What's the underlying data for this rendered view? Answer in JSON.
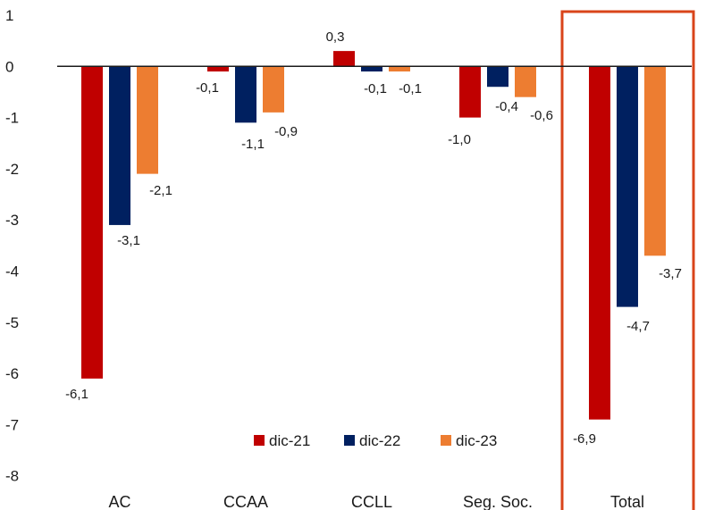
{
  "chart_data": {
    "type": "bar",
    "categories": [
      "AC",
      "CCAA",
      "CCLL",
      "Seg. Soc.",
      "Total"
    ],
    "series": [
      {
        "name": "dic-21",
        "color": "#C00000",
        "values": [
          -6.1,
          -0.1,
          0.3,
          -1.0,
          -6.9
        ],
        "labels": [
          "-6,1",
          "-0,1",
          "0,3",
          "-1,0",
          "-6,9"
        ]
      },
      {
        "name": "dic-22",
        "color": "#002060",
        "values": [
          -3.1,
          -1.1,
          -0.1,
          -0.4,
          -4.7
        ],
        "labels": [
          "-3,1",
          "-1,1",
          "-0,1",
          "-0,4",
          "-4,7"
        ]
      },
      {
        "name": "dic-23",
        "color": "#ED7D31",
        "values": [
          -2.1,
          -0.9,
          -0.1,
          -0.6,
          -3.7
        ],
        "labels": [
          "-2,1",
          "-0,9",
          "-0,1",
          "-0,6",
          "-3,7"
        ]
      }
    ],
    "ylim": [
      -8,
      1
    ],
    "yticks": [
      1,
      0,
      -1,
      -2,
      -3,
      -4,
      -5,
      -6,
      -7,
      -8
    ],
    "ytick_labels": [
      "1",
      "0",
      "-1",
      "-2",
      "-3",
      "-4",
      "-5",
      "-6",
      "-7",
      "-8"
    ],
    "title": "",
    "xlabel": "",
    "ylabel": "",
    "legend": "bottom-center",
    "grid": false,
    "highlight_category": "Total",
    "highlight_color": "#D9441A"
  }
}
